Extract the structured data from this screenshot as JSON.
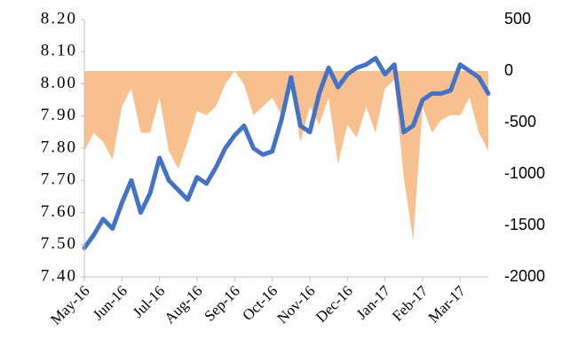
{
  "chart_data": {
    "type": "combo",
    "categories": [
      "May-16",
      null,
      null,
      null,
      "Jun-16",
      null,
      null,
      null,
      "Jul-16",
      null,
      null,
      null,
      "Aug-16",
      null,
      null,
      null,
      "Sep-16",
      null,
      null,
      null,
      "Oct-16",
      null,
      null,
      null,
      "Nov-16",
      null,
      null,
      null,
      "Dec-16",
      null,
      null,
      null,
      "Jan-17",
      null,
      null,
      null,
      "Feb-17",
      null,
      null,
      null,
      "Mar-17",
      null,
      null,
      null
    ],
    "series": [
      {
        "type": "area",
        "axis": "y2",
        "color": "#f9c08f",
        "values": [
          -775,
          -600,
          -690,
          -860,
          -345,
          -170,
          -600,
          -600,
          -260,
          -780,
          -950,
          -690,
          -390,
          -430,
          -345,
          -130,
          0,
          -130,
          -430,
          -345,
          -260,
          -430,
          -130,
          -690,
          -345,
          -520,
          -260,
          -905,
          -520,
          -650,
          -345,
          -600,
          -170,
          -85,
          -1035,
          -1640,
          -345,
          -600,
          -475,
          -430,
          -430,
          -260,
          -600,
          -775
        ]
      },
      {
        "type": "line",
        "axis": "y",
        "color": "#4472c4",
        "values": [
          7.49,
          7.53,
          7.58,
          7.55,
          7.63,
          7.7,
          7.6,
          7.66,
          7.77,
          7.7,
          7.67,
          7.64,
          7.71,
          7.69,
          7.74,
          7.8,
          7.84,
          7.87,
          7.8,
          7.78,
          7.79,
          7.89,
          8.02,
          7.87,
          7.85,
          7.97,
          8.05,
          7.99,
          8.03,
          8.05,
          8.06,
          8.08,
          8.03,
          8.06,
          7.85,
          7.87,
          7.95,
          7.97,
          7.97,
          7.98,
          8.06,
          8.04,
          8.02,
          7.97
        ]
      }
    ],
    "ylim": [
      7.4,
      8.2
    ],
    "yticks": [
      {
        "value": 7.4,
        "label": "7.40"
      },
      {
        "value": 7.5,
        "label": "7.50"
      },
      {
        "value": 7.6,
        "label": "7.60"
      },
      {
        "value": 7.7,
        "label": "7.70"
      },
      {
        "value": 7.8,
        "label": "7.80"
      },
      {
        "value": 7.9,
        "label": "7.90"
      },
      {
        "value": 8.0,
        "label": "8.00"
      },
      {
        "value": 8.1,
        "label": "8.10"
      },
      {
        "value": 8.2,
        "label": "8.20"
      }
    ],
    "y2lim": [
      -2000,
      500
    ],
    "y2ticks": [
      -2000,
      -1500,
      -1000,
      -500,
      0,
      500
    ]
  }
}
